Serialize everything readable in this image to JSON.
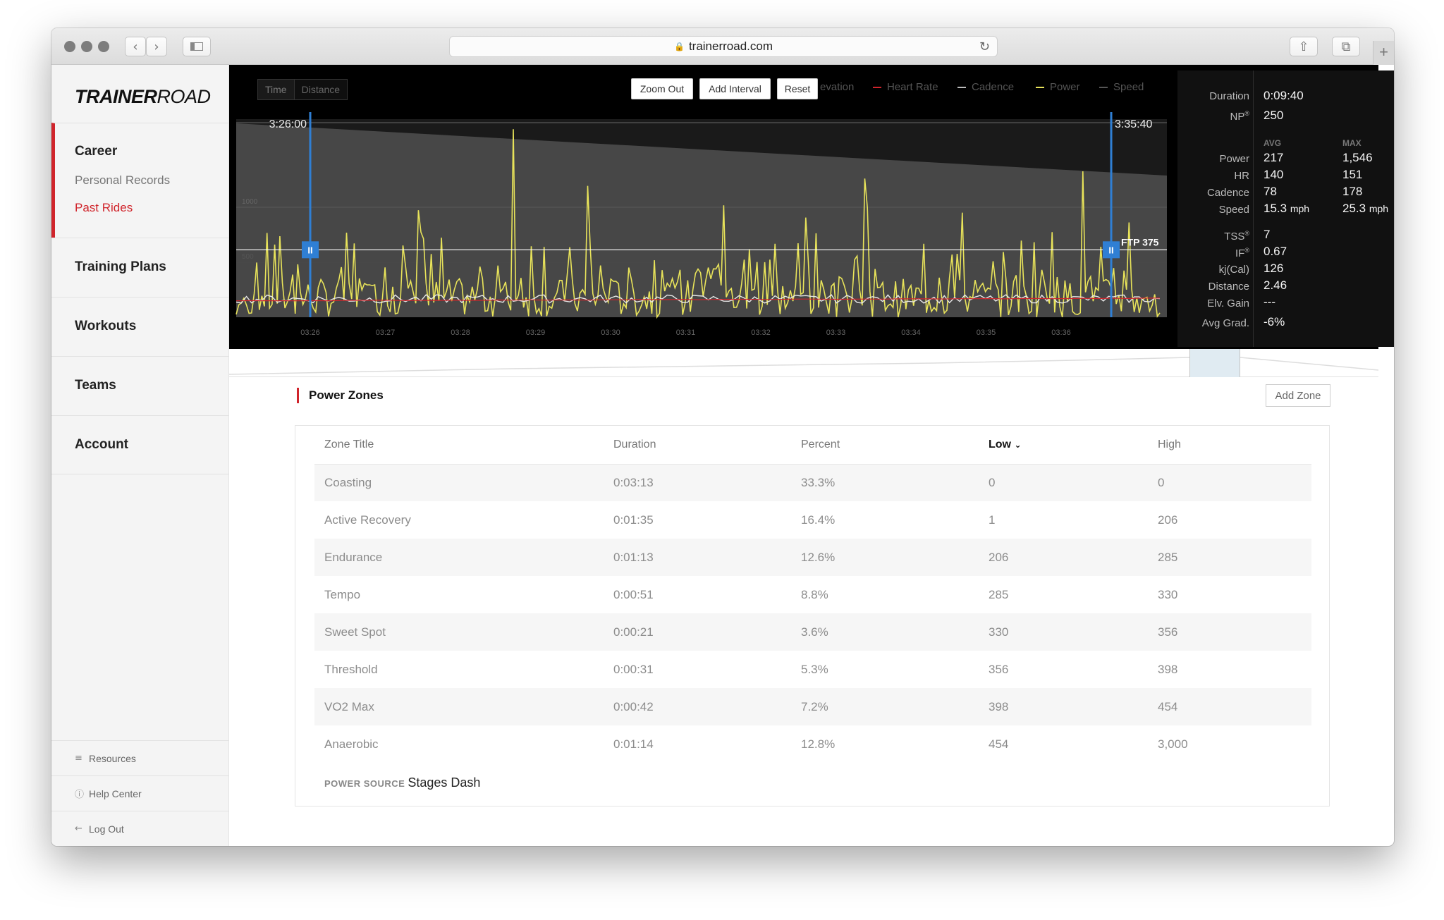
{
  "browser": {
    "url": "trainerroad.com"
  },
  "sidebar": {
    "logo_bold": "TRAINER",
    "logo_light": "ROAD",
    "career": {
      "title": "Career",
      "items": [
        "Personal Records",
        "Past Rides"
      ]
    },
    "sections": [
      "Training Plans",
      "Workouts",
      "Teams",
      "Account"
    ],
    "footer": [
      "Resources",
      "Help Center",
      "Log Out"
    ]
  },
  "chart": {
    "toggle": [
      "Time",
      "Distance"
    ],
    "buttons": {
      "zoom_out": "Zoom Out",
      "add_interval": "Add Interval",
      "reset": "Reset"
    },
    "legend": [
      {
        "label": "evation",
        "color": "#888888"
      },
      {
        "label": "Heart Rate",
        "color": "#d0242b"
      },
      {
        "label": "Cadence",
        "color": "#bbbbbb"
      },
      {
        "label": "Power",
        "color": "#e8e35a"
      },
      {
        "label": "Speed",
        "color": "#555555"
      }
    ],
    "start_time": "3:26:00",
    "end_time": "3:35:40",
    "y_labels": [
      "1000",
      "500"
    ],
    "ftp_label": "FTP 375",
    "x_ticks": [
      "03:26",
      "03:27",
      "03:28",
      "03:29",
      "03:30",
      "03:31",
      "03:32",
      "03:33",
      "03:34",
      "03:35",
      "03:36"
    ],
    "handle_glyph": "II"
  },
  "chart_data": {
    "type": "line",
    "x": [
      "03:26",
      "03:27",
      "03:28",
      "03:29",
      "03:30",
      "03:31",
      "03:32",
      "03:33",
      "03:34",
      "03:35",
      "03:36"
    ],
    "ftp": 375,
    "selection": [
      "3:26:00",
      "3:35:40"
    ],
    "series": [
      {
        "name": "Power",
        "color": "#e8e35a",
        "values": [
          180,
          220,
          260,
          300,
          1546,
          420,
          1400,
          360,
          600,
          1180,
          150
        ]
      },
      {
        "name": "Heart Rate",
        "color": "#d0242b",
        "values": [
          128,
          134,
          138,
          140,
          142,
          144,
          146,
          148,
          146,
          151,
          140
        ]
      },
      {
        "name": "Cadence",
        "color": "#bbbbbb",
        "values": [
          70,
          76,
          78,
          80,
          82,
          78,
          80,
          84,
          80,
          178,
          60
        ]
      }
    ]
  },
  "stats": {
    "duration_label": "Duration",
    "duration": "0:09:40",
    "np_label": "NP",
    "np": "250",
    "avg_head": "AVG",
    "max_head": "MAX",
    "rows": [
      {
        "label": "Power",
        "avg": "217",
        "max": "1,546"
      },
      {
        "label": "HR",
        "avg": "140",
        "max": "151"
      },
      {
        "label": "Cadence",
        "avg": "78",
        "max": "178"
      },
      {
        "label": "Speed",
        "avg": "15.3",
        "avg_unit": "mph",
        "max": "25.3",
        "max_unit": "mph"
      }
    ],
    "extra": [
      {
        "label": "TSS",
        "value": "7"
      },
      {
        "label": "IF",
        "value": "0.67"
      },
      {
        "label": "kj(Cal)",
        "value": "126"
      },
      {
        "label": "Distance",
        "value": "2.46"
      },
      {
        "label": "Elv. Gain",
        "value": "---"
      },
      {
        "label": "Avg Grad.",
        "value": "-6%"
      }
    ]
  },
  "power_zones": {
    "title": "Power Zones",
    "add_zone": "Add Zone",
    "columns": [
      "Zone Title",
      "Duration",
      "Percent",
      "Low",
      "High"
    ],
    "rows": [
      [
        "Coasting",
        "0:03:13",
        "33.3%",
        "0",
        "0"
      ],
      [
        "Active Recovery",
        "0:01:35",
        "16.4%",
        "1",
        "206"
      ],
      [
        "Endurance",
        "0:01:13",
        "12.6%",
        "206",
        "285"
      ],
      [
        "Tempo",
        "0:00:51",
        "8.8%",
        "285",
        "330"
      ],
      [
        "Sweet Spot",
        "0:00:21",
        "3.6%",
        "330",
        "356"
      ],
      [
        "Threshold",
        "0:00:31",
        "5.3%",
        "356",
        "398"
      ],
      [
        "VO2 Max",
        "0:00:42",
        "7.2%",
        "398",
        "454"
      ],
      [
        "Anaerobic",
        "0:01:14",
        "12.8%",
        "454",
        "3,000"
      ]
    ],
    "power_source_label": "POWER SOURCE",
    "power_source": "Stages Dash"
  }
}
